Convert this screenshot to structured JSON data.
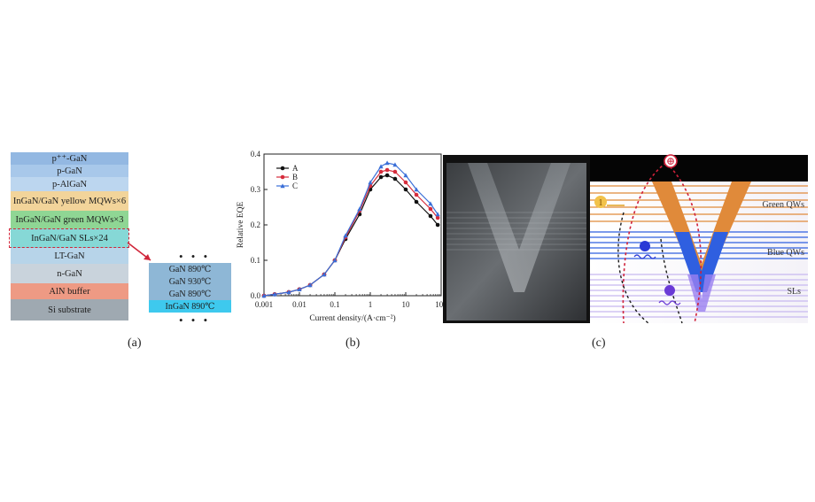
{
  "panel_a": {
    "caption": "(a)",
    "layers": [
      {
        "label": "p⁺⁺-GaN",
        "color": "#93b8e2"
      },
      {
        "label": "p-GaN",
        "color": "#a8c8ea"
      },
      {
        "label": "p-AlGaN",
        "color": "#bcd6ef"
      },
      {
        "label": "InGaN/GaN yellow MQWs×6",
        "color": "#f2d49a"
      },
      {
        "label": "InGaN/GaN green MQWs×3",
        "color": "#8fd694"
      },
      {
        "label": "InGaN/GaN SLs×24",
        "color": "#86d8d6"
      },
      {
        "label": "LT-GaN",
        "color": "#b7d4e9"
      },
      {
        "label": "n-GaN",
        "color": "#c9d3dc"
      },
      {
        "label": "AlN buffer",
        "color": "#ee9a84"
      },
      {
        "label": "Si substrate",
        "color": "#9fa9b1"
      }
    ],
    "zoom_layers": [
      {
        "label": "GaN 890℃",
        "color": "#8eb7d6"
      },
      {
        "label": "GaN 930℃",
        "color": "#8eb7d6"
      },
      {
        "label": "GaN 890℃",
        "color": "#8eb7d6"
      },
      {
        "label": "InGaN 890℃",
        "color": "#3ec9ee"
      }
    ],
    "dots": "• • •",
    "highlight_color": "#d0263a"
  },
  "panel_b": {
    "caption": "(b)"
  },
  "chart_data": {
    "type": "line",
    "xscale": "log",
    "xlabel": "Current density/(A·cm⁻²)",
    "ylabel": "Relative EQE",
    "xlim": [
      0.001,
      100
    ],
    "ylim": [
      0,
      0.4
    ],
    "xticks": [
      "0.001",
      "0.01",
      "0.1",
      "1",
      "10",
      "100"
    ],
    "yticks": [
      "0.0",
      "0.1",
      "0.2",
      "0.3",
      "0.4"
    ],
    "legend_position": "top-left",
    "x": [
      0.001,
      0.002,
      0.005,
      0.01,
      0.02,
      0.05,
      0.1,
      0.2,
      0.5,
      1,
      2,
      3,
      5,
      10,
      20,
      50,
      80
    ],
    "series": [
      {
        "name": "A",
        "color": "#111111",
        "marker": "circle",
        "values": [
          0.0,
          0.004,
          0.01,
          0.018,
          0.03,
          0.06,
          0.1,
          0.16,
          0.23,
          0.3,
          0.335,
          0.34,
          0.33,
          0.3,
          0.265,
          0.225,
          0.2
        ]
      },
      {
        "name": "B",
        "color": "#d62c3c",
        "marker": "circle",
        "values": [
          0.0,
          0.004,
          0.01,
          0.018,
          0.03,
          0.06,
          0.1,
          0.165,
          0.24,
          0.31,
          0.35,
          0.355,
          0.35,
          0.32,
          0.285,
          0.245,
          0.22
        ]
      },
      {
        "name": "C",
        "color": "#3a6fd8",
        "marker": "triangle",
        "values": [
          0.0,
          0.004,
          0.01,
          0.018,
          0.03,
          0.06,
          0.1,
          0.17,
          0.245,
          0.32,
          0.365,
          0.375,
          0.37,
          0.34,
          0.3,
          0.26,
          0.23
        ]
      }
    ]
  },
  "panel_c": {
    "caption": "(c)",
    "green_label": "Green QWs",
    "blue_label": "Blue QWs",
    "sls_label": "SLs",
    "hole_symbol": "⊕",
    "one_badge": "1",
    "colors": {
      "green_qw": "#e08a3a",
      "blue_qw": "#2f5fe0",
      "sls": "#c7b8f0",
      "carrier_path": "#d0213a"
    }
  }
}
